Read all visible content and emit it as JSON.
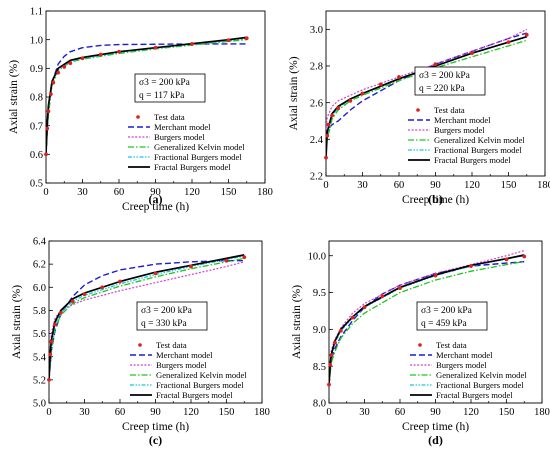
{
  "legend": [
    "Test data",
    "Merchant model",
    "Burgers model",
    "Generalized Kelvin model",
    "Fractional Burgers model",
    "Fractal Burgers model"
  ],
  "colors": {
    "test": "#e0201b",
    "merchant": "#1c1cd6",
    "burgers": "#d43fd4",
    "kelvin": "#1cc61c",
    "fractional": "#19c8e0",
    "fractal": "#000000"
  },
  "chart_data": [
    {
      "panel": "(a)",
      "type": "line",
      "xlabel": "Creep time (h)",
      "ylabel": "Axial strain (%)",
      "xlim": [
        0,
        180
      ],
      "ylim": [
        0.5,
        1.1
      ],
      "xticks": [
        "0",
        "30",
        "60",
        "90",
        "120",
        "150",
        "180"
      ],
      "yticks": [
        "0.5",
        "0.6",
        "0.7",
        "0.8",
        "0.9",
        "1.0",
        "1.1"
      ],
      "sigma_label": "σ3 = 200 kPa",
      "q_label": "q = 117 kPa",
      "series": [
        {
          "name": "Test data",
          "key": "test",
          "x": [
            0,
            1,
            2,
            4,
            6,
            10,
            15,
            20,
            30,
            45,
            60,
            90,
            120,
            150,
            165
          ],
          "y": [
            0.6,
            0.69,
            0.75,
            0.81,
            0.85,
            0.885,
            0.905,
            0.918,
            0.935,
            0.948,
            0.958,
            0.972,
            0.985,
            0.998,
            1.005
          ]
        },
        {
          "name": "Merchant model",
          "key": "merchant",
          "x": [
            0,
            2,
            5,
            10,
            15,
            20,
            30,
            45,
            60,
            90,
            120,
            165
          ],
          "y": [
            0.6,
            0.76,
            0.85,
            0.915,
            0.942,
            0.958,
            0.972,
            0.98,
            0.983,
            0.984,
            0.985,
            0.985
          ]
        },
        {
          "name": "Burgers model",
          "key": "burgers",
          "x": [
            0,
            2,
            5,
            10,
            20,
            30,
            60,
            90,
            120,
            150,
            165
          ],
          "y": [
            0.6,
            0.76,
            0.85,
            0.9,
            0.925,
            0.935,
            0.957,
            0.972,
            0.985,
            0.997,
            1.003
          ]
        },
        {
          "name": "Generalized Kelvin model",
          "key": "kelvin",
          "x": [
            0,
            2,
            5,
            10,
            20,
            30,
            60,
            90,
            120,
            150,
            165
          ],
          "y": [
            0.6,
            0.74,
            0.84,
            0.892,
            0.922,
            0.932,
            0.952,
            0.968,
            0.981,
            0.994,
            1.0
          ]
        },
        {
          "name": "Fractional Burgers model",
          "key": "fractional",
          "x": [
            0,
            1,
            2,
            5,
            10,
            20,
            30,
            60,
            90,
            120,
            150,
            165
          ],
          "y": [
            0.6,
            0.7,
            0.76,
            0.85,
            0.895,
            0.925,
            0.935,
            0.956,
            0.97,
            0.984,
            0.998,
            1.005
          ]
        },
        {
          "name": "Fractal Burgers model",
          "key": "fractal",
          "x": [
            0,
            1,
            2,
            5,
            10,
            20,
            30,
            60,
            90,
            120,
            150,
            165
          ],
          "y": [
            0.6,
            0.71,
            0.77,
            0.855,
            0.9,
            0.928,
            0.938,
            0.958,
            0.972,
            0.986,
            1.0,
            1.008
          ]
        }
      ]
    },
    {
      "panel": "(b)",
      "type": "line",
      "xlabel": "Creep time (h)",
      "ylabel": "Axial strain (%)",
      "xlim": [
        0,
        180
      ],
      "ylim": [
        2.2,
        3.1
      ],
      "xticks": [
        "0",
        "30",
        "60",
        "90",
        "120",
        "150",
        "180"
      ],
      "yticks": [
        "2.2",
        "2.4",
        "2.6",
        "2.8",
        "3.0"
      ],
      "sigma_label": "σ3 = 200 kPa",
      "q_label": "q = 220 kPa",
      "series": [
        {
          "name": "Test data",
          "key": "test",
          "x": [
            0,
            1,
            2,
            5,
            10,
            20,
            30,
            45,
            60,
            90,
            120,
            150,
            165
          ],
          "y": [
            2.3,
            2.42,
            2.48,
            2.53,
            2.57,
            2.61,
            2.65,
            2.7,
            2.74,
            2.81,
            2.87,
            2.93,
            2.97
          ]
        },
        {
          "name": "Merchant model",
          "key": "merchant",
          "x": [
            0,
            1,
            5,
            10,
            20,
            30,
            60,
            90,
            120,
            150,
            165
          ],
          "y": [
            2.42,
            2.45,
            2.48,
            2.5,
            2.56,
            2.61,
            2.72,
            2.81,
            2.88,
            2.95,
            2.98
          ]
        },
        {
          "name": "Burgers model",
          "key": "burgers",
          "x": [
            0,
            1,
            5,
            10,
            20,
            30,
            60,
            90,
            120,
            150,
            165
          ],
          "y": [
            2.45,
            2.52,
            2.58,
            2.61,
            2.64,
            2.67,
            2.74,
            2.81,
            2.88,
            2.95,
            3.0
          ]
        },
        {
          "name": "Generalized Kelvin model",
          "key": "kelvin",
          "x": [
            0,
            1,
            5,
            10,
            20,
            30,
            60,
            90,
            120,
            150,
            165
          ],
          "y": [
            2.3,
            2.4,
            2.51,
            2.56,
            2.61,
            2.64,
            2.72,
            2.79,
            2.85,
            2.91,
            2.94
          ]
        },
        {
          "name": "Fractional Burgers model",
          "key": "fractional",
          "x": [
            0,
            1,
            5,
            10,
            20,
            30,
            60,
            90,
            120,
            150,
            165
          ],
          "y": [
            2.3,
            2.43,
            2.53,
            2.57,
            2.62,
            2.65,
            2.73,
            2.8,
            2.87,
            2.93,
            2.96
          ]
        },
        {
          "name": "Fractal Burgers model",
          "key": "fractal",
          "x": [
            0,
            1,
            5,
            10,
            20,
            30,
            60,
            90,
            120,
            150,
            165
          ],
          "y": [
            2.3,
            2.44,
            2.54,
            2.58,
            2.62,
            2.65,
            2.73,
            2.8,
            2.87,
            2.93,
            2.96
          ]
        }
      ]
    },
    {
      "panel": "(c)",
      "type": "line",
      "xlabel": "Creep time (h)",
      "ylabel": "Axial strain (%)",
      "xlim": [
        0,
        180
      ],
      "ylim": [
        5.0,
        6.4
      ],
      "xticks": [
        "0",
        "30",
        "60",
        "90",
        "120",
        "150",
        "180"
      ],
      "yticks": [
        "5.0",
        "5.2",
        "5.4",
        "5.6",
        "5.8",
        "6.0",
        "6.2",
        "6.4"
      ],
      "sigma_label": "σ3 = 200 kPa",
      "q_label": "q = 330 kPa",
      "series": [
        {
          "name": "Test data",
          "key": "test",
          "x": [
            0,
            1,
            2,
            5,
            10,
            20,
            30,
            45,
            60,
            90,
            120,
            150,
            165
          ],
          "y": [
            5.2,
            5.42,
            5.53,
            5.68,
            5.78,
            5.88,
            5.94,
            6.0,
            6.05,
            6.12,
            6.18,
            6.23,
            6.26
          ]
        },
        {
          "name": "Merchant model",
          "key": "merchant",
          "x": [
            0,
            2,
            5,
            10,
            20,
            30,
            45,
            60,
            90,
            120,
            150,
            165
          ],
          "y": [
            5.2,
            5.45,
            5.62,
            5.77,
            5.92,
            6.02,
            6.1,
            6.15,
            6.2,
            6.22,
            6.23,
            6.23
          ]
        },
        {
          "name": "Burgers model",
          "key": "burgers",
          "x": [
            0,
            2,
            5,
            10,
            20,
            30,
            60,
            90,
            120,
            150,
            165
          ],
          "y": [
            5.35,
            5.6,
            5.73,
            5.8,
            5.85,
            5.89,
            5.97,
            6.04,
            6.11,
            6.18,
            6.22
          ]
        },
        {
          "name": "Generalized Kelvin model",
          "key": "kelvin",
          "x": [
            0,
            2,
            5,
            10,
            20,
            30,
            60,
            90,
            120,
            150,
            165
          ],
          "y": [
            5.2,
            5.45,
            5.64,
            5.76,
            5.86,
            5.91,
            6.01,
            6.09,
            6.16,
            6.22,
            6.25
          ]
        },
        {
          "name": "Fractional Burgers model",
          "key": "fractional",
          "x": [
            0,
            1,
            2,
            5,
            10,
            20,
            30,
            60,
            90,
            120,
            150,
            165
          ],
          "y": [
            5.2,
            5.42,
            5.52,
            5.68,
            5.78,
            5.88,
            5.93,
            6.03,
            6.11,
            6.18,
            6.24,
            6.27
          ]
        },
        {
          "name": "Fractal Burgers model",
          "key": "fractal",
          "x": [
            0,
            1,
            2,
            5,
            10,
            20,
            30,
            60,
            90,
            120,
            150,
            165
          ],
          "y": [
            5.2,
            5.43,
            5.54,
            5.7,
            5.8,
            5.9,
            5.95,
            6.05,
            6.13,
            6.19,
            6.25,
            6.28
          ]
        }
      ]
    },
    {
      "panel": "(d)",
      "type": "line",
      "xlabel": "Creep time (h)",
      "ylabel": "Axial strain (%)",
      "xlim": [
        0,
        180
      ],
      "ylim": [
        8.0,
        10.2
      ],
      "xticks": [
        "0",
        "30",
        "60",
        "90",
        "120",
        "150",
        "180"
      ],
      "yticks": [
        "8.0",
        "8.5",
        "9.0",
        "9.5",
        "10.0"
      ],
      "sigma_label": "σ3 = 200 kPa",
      "q_label": "q = 459 kPa",
      "series": [
        {
          "name": "Test data",
          "key": "test",
          "x": [
            0,
            1,
            2,
            5,
            10,
            20,
            30,
            45,
            60,
            90,
            120,
            150,
            165
          ],
          "y": [
            8.25,
            8.52,
            8.65,
            8.82,
            8.98,
            9.16,
            9.3,
            9.45,
            9.56,
            9.73,
            9.86,
            9.95,
            9.99
          ]
        },
        {
          "name": "Merchant model",
          "key": "merchant",
          "x": [
            0,
            2,
            5,
            10,
            20,
            30,
            45,
            60,
            90,
            120,
            150,
            165
          ],
          "y": [
            8.25,
            8.6,
            8.74,
            8.9,
            9.12,
            9.3,
            9.48,
            9.6,
            9.76,
            9.86,
            9.9,
            9.92
          ]
        },
        {
          "name": "Burgers model",
          "key": "burgers",
          "x": [
            0,
            2,
            5,
            10,
            20,
            30,
            60,
            90,
            120,
            150,
            165
          ],
          "y": [
            8.4,
            8.72,
            8.86,
            9.02,
            9.22,
            9.35,
            9.6,
            9.76,
            9.88,
            10.0,
            10.07
          ]
        },
        {
          "name": "Generalized Kelvin model",
          "key": "kelvin",
          "x": [
            0,
            2,
            5,
            10,
            20,
            30,
            60,
            90,
            120,
            150,
            165
          ],
          "y": [
            8.25,
            8.55,
            8.7,
            8.88,
            9.08,
            9.22,
            9.5,
            9.67,
            9.79,
            9.88,
            9.92
          ]
        },
        {
          "name": "Fractional Burgers model",
          "key": "fractional",
          "x": [
            0,
            1,
            2,
            5,
            10,
            20,
            30,
            60,
            90,
            120,
            150,
            165
          ],
          "y": [
            8.25,
            8.5,
            8.64,
            8.82,
            8.98,
            9.16,
            9.3,
            9.56,
            9.73,
            9.86,
            9.96,
            10.0
          ]
        },
        {
          "name": "Fractal Burgers model",
          "key": "fractal",
          "x": [
            0,
            1,
            2,
            5,
            10,
            20,
            30,
            60,
            90,
            120,
            150,
            165
          ],
          "y": [
            8.25,
            8.52,
            8.66,
            8.84,
            9.0,
            9.17,
            9.31,
            9.57,
            9.74,
            9.87,
            9.96,
            10.01
          ]
        }
      ]
    }
  ]
}
